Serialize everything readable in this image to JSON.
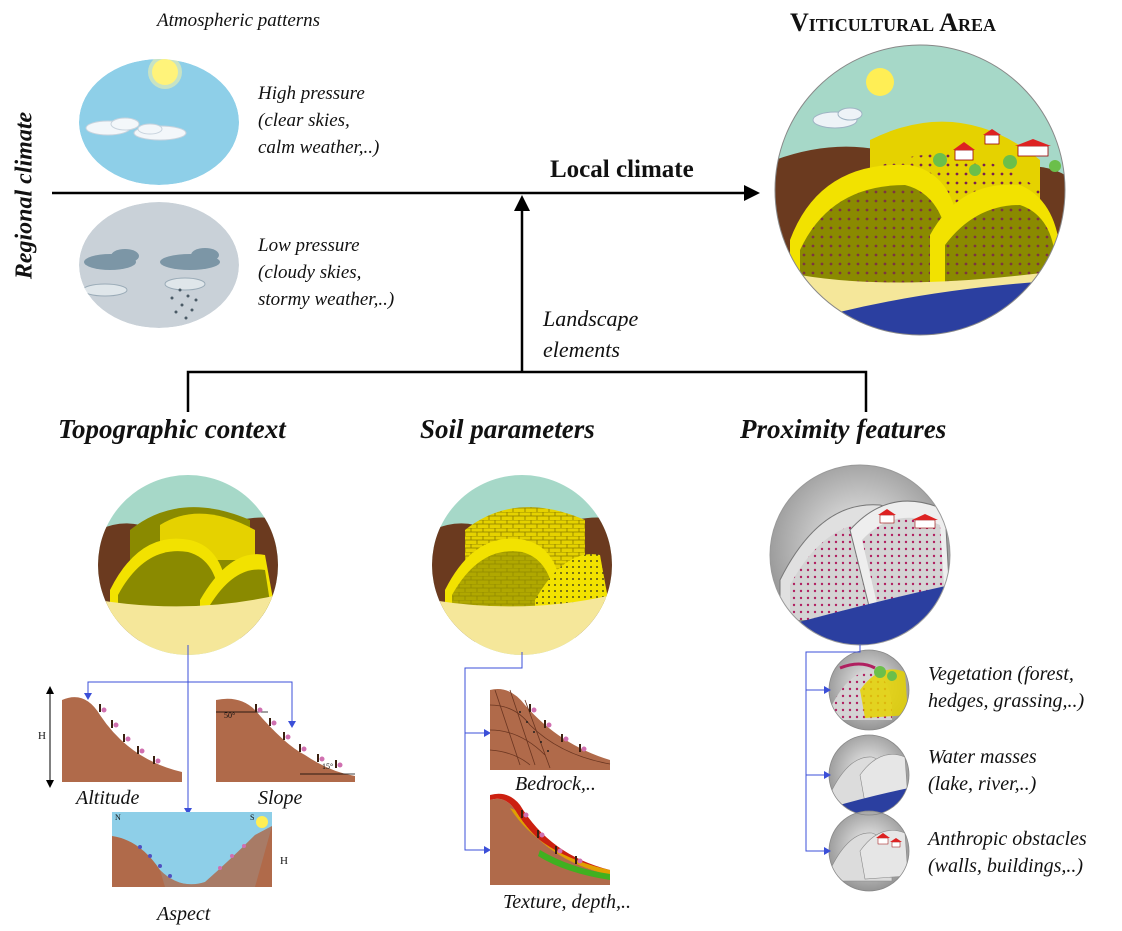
{
  "labels": {
    "atmospheric_patterns": "Atmospheric patterns",
    "high_pressure": [
      "High pressure",
      "(clear skies,",
      "calm weather,..)"
    ],
    "low_pressure": [
      "Low pressure",
      "(cloudy skies,",
      "stormy weather,..)"
    ],
    "regional_climate": "Regional climate",
    "local_climate": "Local climate",
    "viticultural_area": "Viticultural Area",
    "landscape_elements": [
      "Landscape",
      "elements"
    ],
    "topographic_context": "Topographic context",
    "soil_parameters": "Soil parameters",
    "proximity_features": "Proximity features",
    "altitude": "Altitude",
    "slope": "Slope",
    "aspect": "Aspect",
    "bedrock": "Bedrock,..",
    "texture_depth": "Texture, depth,..",
    "vegetation": [
      "Vegetation (forest,",
      "hedges, grassing,..)"
    ],
    "water_masses": [
      "Water masses",
      "(lake, river,..)"
    ],
    "anthropic_obstacles": [
      "Anthropic obstacles",
      "(walls, buildings,..)"
    ],
    "h_altitude": "H",
    "h_aspect": "H",
    "angle_50": "50°",
    "angle_15": "15°",
    "compass_n": "N",
    "compass_s": "S"
  },
  "colors": {
    "sky": "#8ecfe8",
    "sky_grey": "#c9d1d8",
    "sun": "#ffee55",
    "hill_yellow": "#f2e200",
    "hill_olive": "#8a8a00",
    "hill_brown": "#6b3a1f",
    "sand": "#f5e79a",
    "teal_sky": "#a6d8c8",
    "river": "#2b3fa0",
    "soil": "#b06a4a",
    "connector": "#3b4fd8",
    "vine_pink": "#c05080"
  }
}
